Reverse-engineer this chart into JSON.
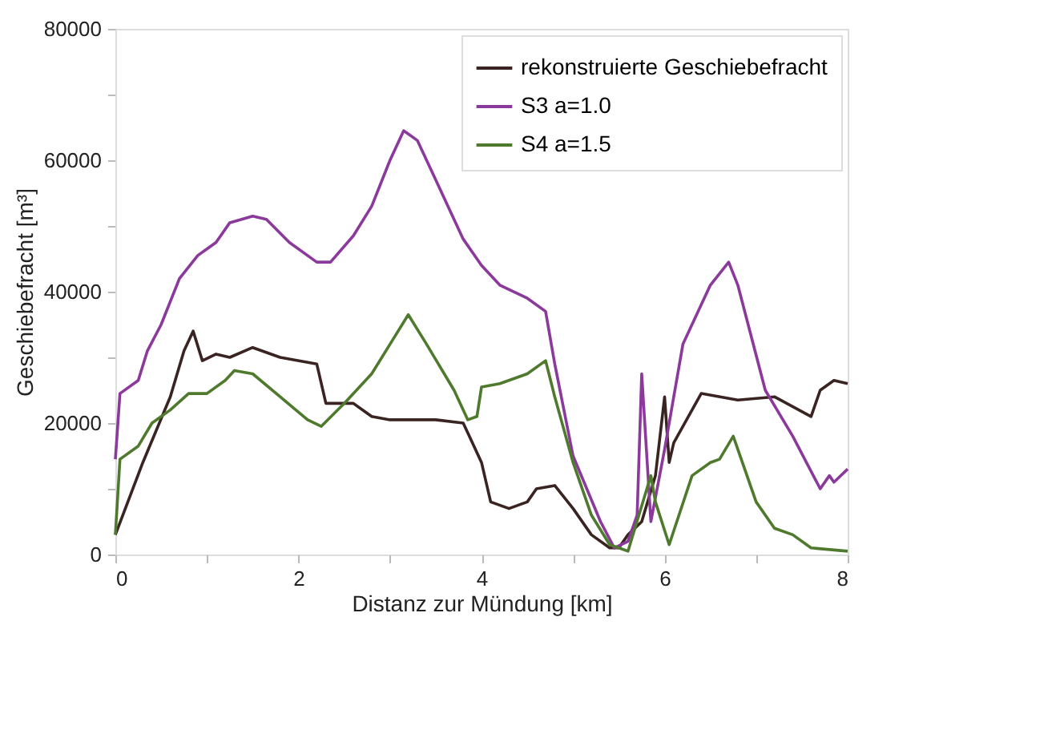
{
  "chart_data": {
    "type": "line",
    "xlabel": "Distanz zur Mündung [km]",
    "ylabel": "Geschiebefracht [m³]",
    "xlim": [
      0,
      8
    ],
    "xticks": [
      0,
      {
        "value": 1,
        "label": null
      },
      2,
      {
        "value": 3,
        "label": null
      },
      4,
      {
        "value": 5,
        "label": null
      },
      6,
      {
        "value": 7,
        "label": null
      },
      8
    ],
    "ylim": [
      0,
      80000
    ],
    "yticks": [
      0,
      {
        "value": 10000,
        "label": null
      },
      20000,
      {
        "value": 30000,
        "label": null
      },
      40000,
      {
        "value": 50000,
        "label": null
      },
      60000,
      {
        "value": 70000,
        "label": null
      },
      80000
    ],
    "grid": false,
    "legend": "top right",
    "marker": "none",
    "line_style": "solid",
    "series": [
      {
        "name": "rekonstruierte Geschiebefracht",
        "color": "#3a2422",
        "x": [
          0,
          0.3,
          0.6,
          0.75,
          0.85,
          0.95,
          1.1,
          1.25,
          1.5,
          1.8,
          2.2,
          2.3,
          2.6,
          2.8,
          3.0,
          3.5,
          3.8,
          3.9,
          4.0,
          4.1,
          4.3,
          4.5,
          4.6,
          4.8,
          5.0,
          5.2,
          5.4,
          5.5,
          5.6,
          5.75,
          5.9,
          6.0,
          6.05,
          6.1,
          6.4,
          6.8,
          7.2,
          7.6,
          7.7,
          7.85,
          8.0
        ],
        "values": [
          3000,
          14000,
          24000,
          31000,
          34000,
          29500,
          30500,
          30000,
          31500,
          30000,
          29000,
          23000,
          23000,
          21000,
          20500,
          20500,
          20000,
          17000,
          14000,
          8000,
          7000,
          8000,
          10000,
          10500,
          7000,
          3000,
          1000,
          1000,
          3000,
          5000,
          12000,
          24000,
          14000,
          17000,
          24500,
          23500,
          24000,
          21000,
          25000,
          26500,
          26000
        ]
      },
      {
        "name": "S3 a=1.0",
        "color": "#8b3a9c",
        "x": [
          0,
          0.05,
          0.25,
          0.35,
          0.5,
          0.7,
          0.9,
          1.1,
          1.25,
          1.5,
          1.65,
          1.9,
          2.2,
          2.35,
          2.6,
          2.8,
          3.0,
          3.15,
          3.3,
          3.5,
          3.8,
          4.0,
          4.2,
          4.5,
          4.7,
          4.8,
          5.0,
          5.3,
          5.45,
          5.6,
          5.7,
          5.75,
          5.85,
          6.0,
          6.2,
          6.5,
          6.7,
          6.8,
          7.1,
          7.4,
          7.7,
          7.8,
          7.85,
          8.0
        ],
        "values": [
          14500,
          24500,
          26500,
          31000,
          35000,
          42000,
          45500,
          47500,
          50500,
          51500,
          51000,
          47500,
          44500,
          44500,
          48500,
          53000,
          60000,
          64500,
          63000,
          57000,
          48000,
          44000,
          41000,
          39000,
          37000,
          29000,
          15000,
          5000,
          1000,
          2000,
          6000,
          27500,
          5000,
          16000,
          32000,
          41000,
          44500,
          41000,
          25000,
          18000,
          10000,
          12000,
          11000,
          13000
        ]
      },
      {
        "name": "S4 a=1.5",
        "color": "#4f7a2e",
        "x": [
          0,
          0.05,
          0.25,
          0.4,
          0.6,
          0.8,
          1.0,
          1.2,
          1.3,
          1.5,
          1.8,
          2.1,
          2.25,
          2.5,
          2.8,
          3.0,
          3.2,
          3.4,
          3.7,
          3.85,
          3.95,
          4.0,
          4.2,
          4.5,
          4.7,
          4.8,
          5.0,
          5.2,
          5.4,
          5.5,
          5.6,
          5.85,
          5.9,
          6.05,
          6.3,
          6.5,
          6.6,
          6.75,
          7.0,
          7.2,
          7.4,
          7.6,
          8.0
        ],
        "values": [
          3000,
          14500,
          16500,
          20000,
          22000,
          24500,
          24500,
          26500,
          28000,
          27500,
          24000,
          20500,
          19500,
          23000,
          27500,
          32000,
          36500,
          32000,
          25000,
          20500,
          21000,
          25500,
          26000,
          27500,
          29500,
          24000,
          14000,
          6000,
          1500,
          1000,
          500,
          12000,
          8000,
          1500,
          12000,
          14000,
          14500,
          18000,
          8000,
          4000,
          3000,
          1000,
          500
        ]
      }
    ]
  }
}
